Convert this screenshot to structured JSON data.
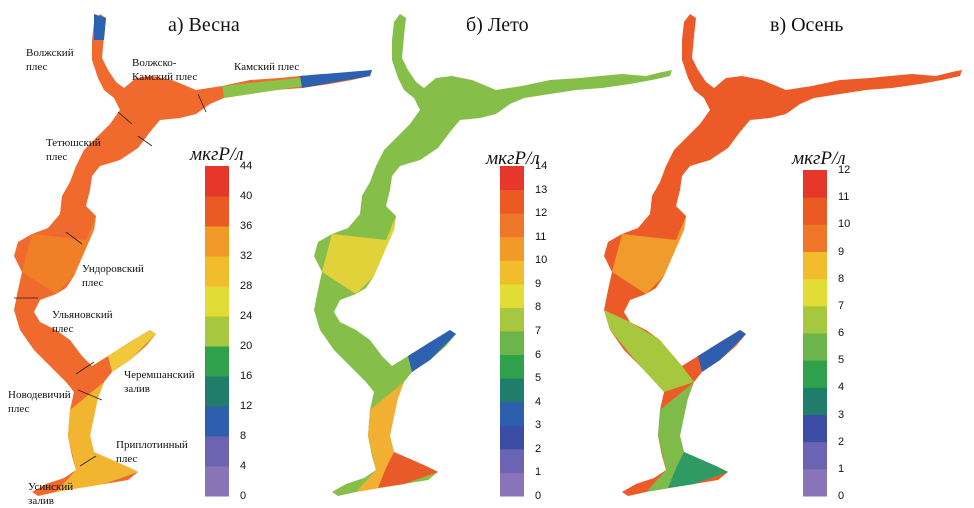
{
  "panels": [
    {
      "title": "а) Весна",
      "unit": "мкгР/л",
      "colors": {
        "upper": "#ef6a2c",
        "main": "#ef5a22",
        "middle": "#f07f28",
        "lower": "#f2b530",
        "bay": "#f0c83a",
        "kama": "#8cc24a",
        "volga": "#2b61b0"
      },
      "scale": {
        "ticks": [
          "0",
          "4",
          "8",
          "12",
          "16",
          "20",
          "24",
          "28",
          "32",
          "36",
          "40",
          "44"
        ]
      }
    },
    {
      "title": "б) Лето",
      "unit": "мкгР/л",
      "colors": {
        "upper": "#79b84c",
        "main": "#86be4a",
        "middle": "#9cc848",
        "lower": "#f2b032",
        "bay": "#e95a2a",
        "kama": "#79b84c",
        "volga": "#79b84c"
      },
      "scale": {
        "ticks": [
          "0",
          "1",
          "2",
          "3",
          "4",
          "5",
          "6",
          "7",
          "8",
          "9",
          "10",
          "11",
          "12",
          "13",
          "14"
        ]
      }
    },
    {
      "title": "в) Осень",
      "unit": "мкгР/л",
      "colors": {
        "upper": "#e9402a",
        "main": "#ec5a27",
        "middle": "#f09b2c",
        "lower": "#7fbb4b",
        "bay": "#2f9a63",
        "kama": "#e9402a",
        "volga": "#e9402a"
      },
      "scale": {
        "ticks": [
          "0",
          "1",
          "2",
          "3",
          "4",
          "5",
          "6",
          "7",
          "8",
          "9",
          "10",
          "11",
          "12"
        ]
      }
    }
  ],
  "scale_colors": [
    "#8a74b8",
    "#6c63b3",
    "#3d4da6",
    "#2d5fae",
    "#1f7d6a",
    "#2fa04c",
    "#6bb54a",
    "#a7c83e",
    "#e2dc36",
    "#f2bd2d",
    "#f29a28",
    "#ef7727",
    "#eb5a23",
    "#e6372a"
  ],
  "region_labels": [
    {
      "text": "Волжский\nплес"
    },
    {
      "text": "Волжско-\nКамский плес"
    },
    {
      "text": "Камский плес"
    },
    {
      "text": "Тетюшский\nплес"
    },
    {
      "text": "Ундоровский\nплес"
    },
    {
      "text": "Ульяновский\nплес"
    },
    {
      "text": "Черемшанский\nзалив"
    },
    {
      "text": "Новодевичий\nплес"
    },
    {
      "text": "Приплотинный\nплес"
    },
    {
      "text": "Усинский\nзалив"
    }
  ]
}
